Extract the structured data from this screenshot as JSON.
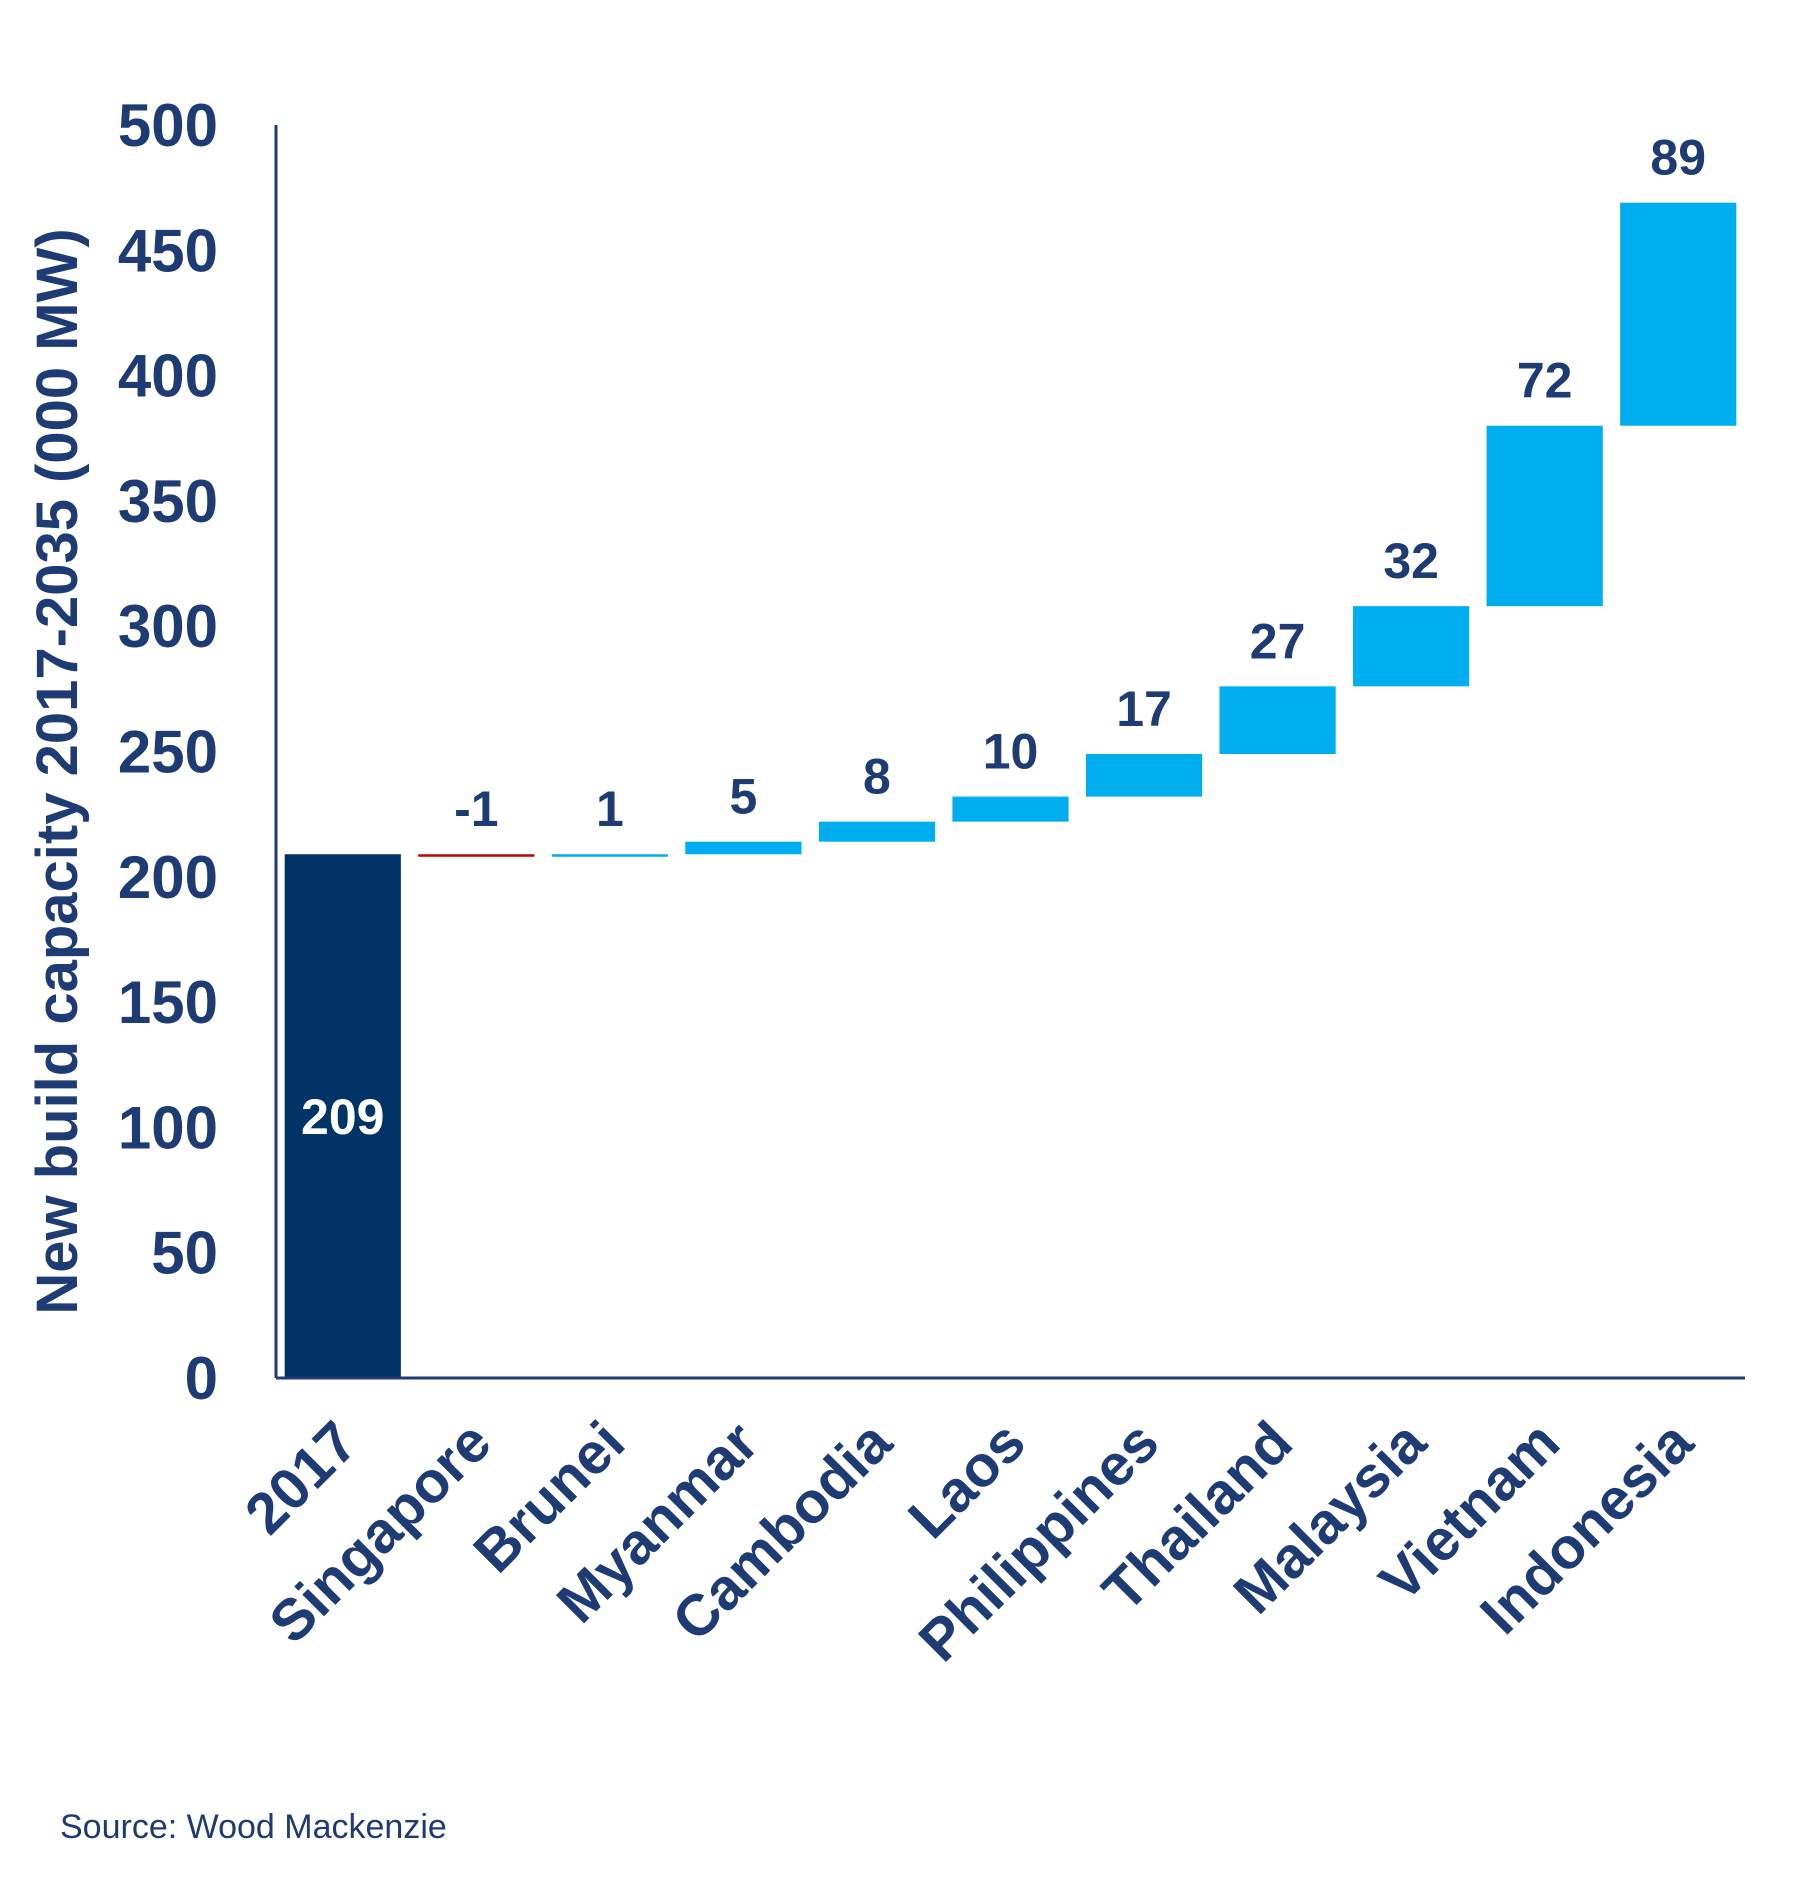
{
  "chart_data": {
    "type": "waterfall",
    "ylabel": "New build capacity 2017-2035 (000 MW)",
    "xlabel": "",
    "ylim": [
      0,
      500
    ],
    "yticks": [
      0,
      50,
      100,
      150,
      200,
      250,
      300,
      350,
      400,
      450,
      500
    ],
    "grid": false,
    "categories": [
      "2017",
      "Singapore",
      "Brunei",
      "Myanmar",
      "Cambodia",
      "Laos",
      "Philippines",
      "Thailand",
      "Malaysia",
      "Vietnam",
      "Indonesia"
    ],
    "values": [
      209,
      -1,
      1,
      5,
      8,
      10,
      17,
      27,
      32,
      72,
      89
    ],
    "data_labels": [
      "209",
      "-1",
      "1",
      "5",
      "8",
      "10",
      "17",
      "27",
      "32",
      "72",
      "89"
    ],
    "colors": {
      "base": "#003366",
      "increase": "#00AEEF",
      "decrease": "#C00000",
      "text": "#1F3B73",
      "base_label": "#FFFFFF"
    }
  },
  "footer": {
    "source": "Source: Wood Mackenzie"
  }
}
